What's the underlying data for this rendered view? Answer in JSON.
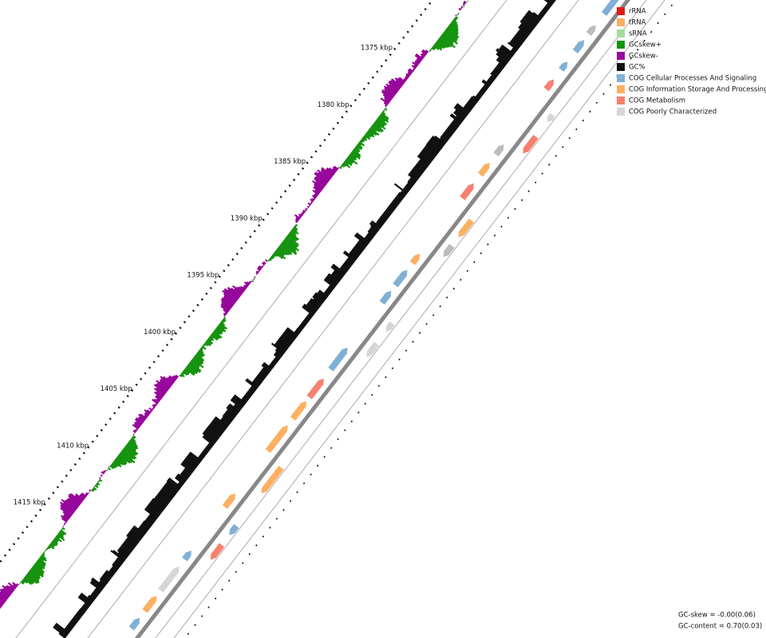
{
  "scale_labels": [
    "1375 kbp",
    "1380 kbp",
    "1385 kbp",
    "1390 kbp",
    "1395 kbp",
    "1400 kbp",
    "1405 kbp",
    "1410 kbp",
    "1415 kbp"
  ],
  "legend": {
    "items": [
      {
        "label": "rRNA",
        "color": "#e31a1c"
      },
      {
        "label": "tRNA",
        "color": "#fdb062"
      },
      {
        "label": "sRNA",
        "color": "#a6dba0"
      },
      {
        "label": "GCskew+",
        "color": "#16930f"
      },
      {
        "label": "GCskew-",
        "color": "#97079b"
      },
      {
        "label": "GC%",
        "color": "#111111"
      },
      {
        "label": "COG Cellular Processes And Signaling",
        "color": "#7fb0d6"
      },
      {
        "label": "COG Information Storage And Processing",
        "color": "#fdb062"
      },
      {
        "label": "COG Metabolism",
        "color": "#f8806f"
      },
      {
        "label": "COG Poorly Characterized",
        "color": "#d6d6d6"
      }
    ]
  },
  "footer": {
    "gc_skew": "GC-skew = -0.00(0.06)",
    "gc_content": "GC-content = 0.70(0.03)"
  }
}
